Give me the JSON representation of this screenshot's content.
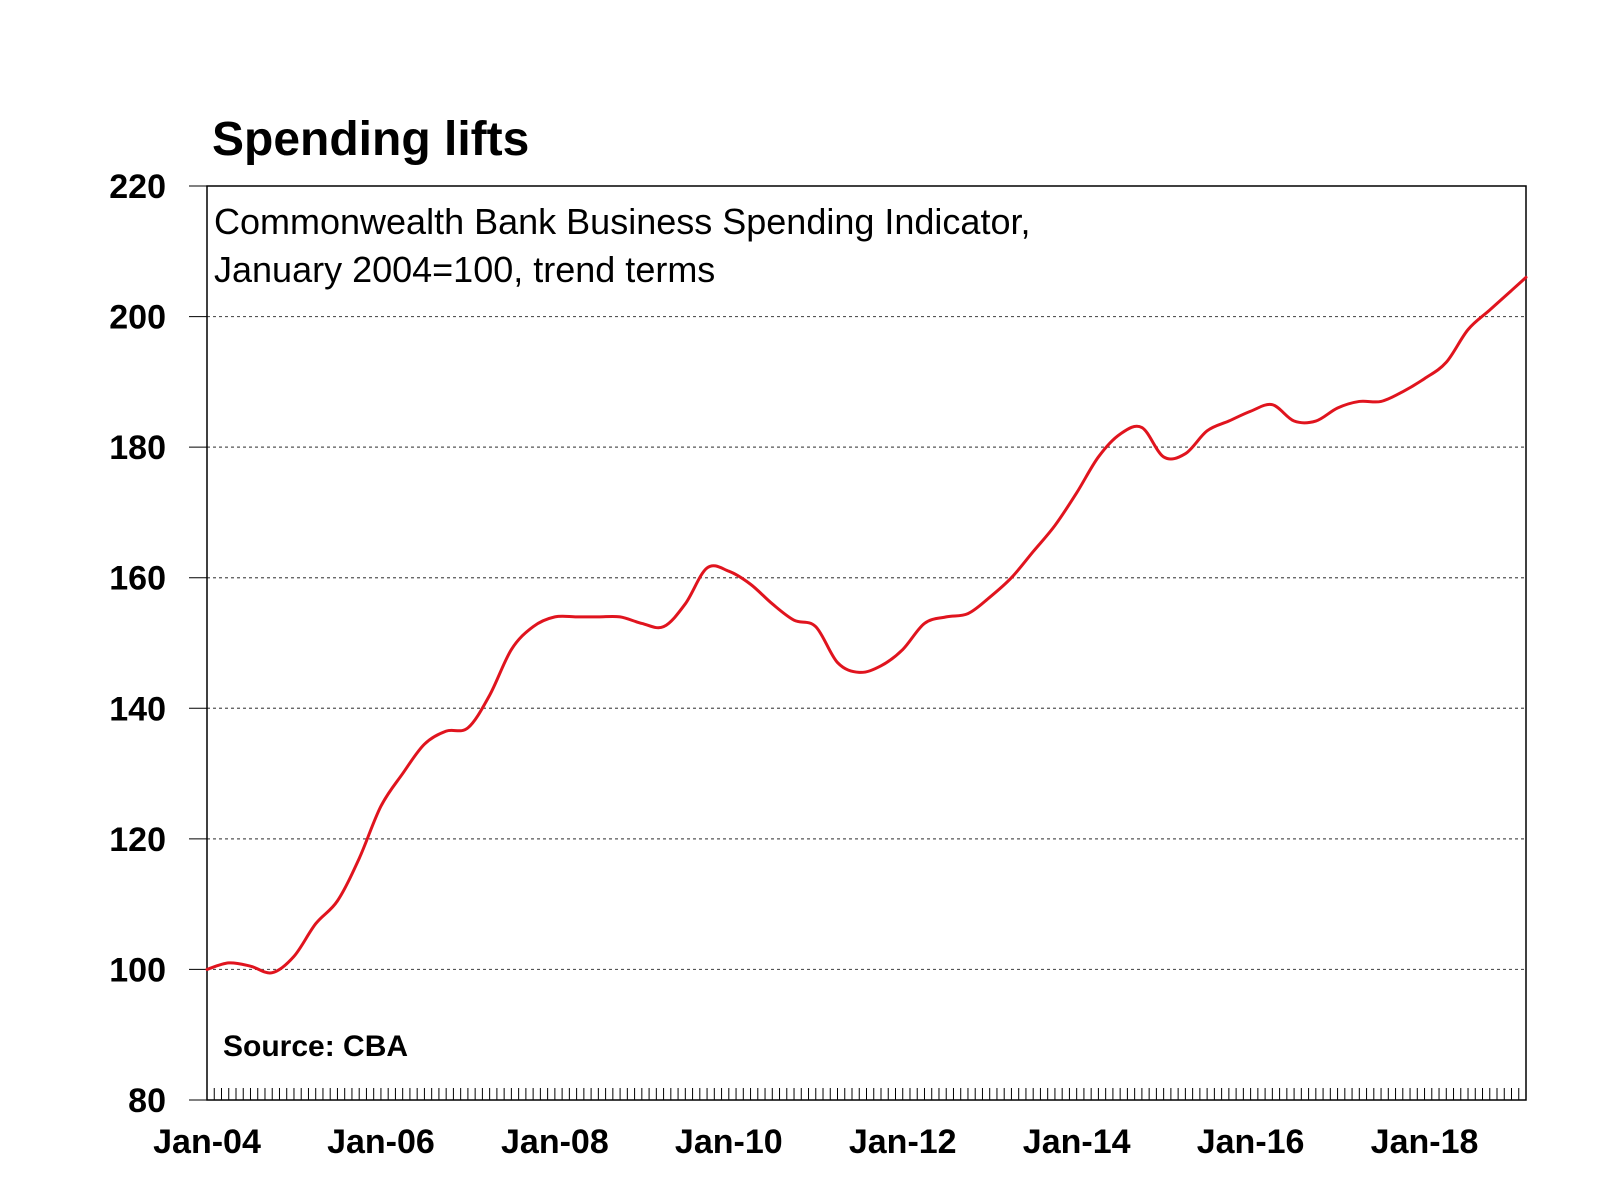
{
  "chart_data": {
    "type": "line",
    "title": "Spending lifts",
    "subtitle_lines": [
      "Commonwealth Bank Business Spending Indicator,",
      "January 2004=100, trend terms"
    ],
    "source": "Source: CBA",
    "ylim": [
      80,
      220
    ],
    "yticks": [
      80,
      100,
      120,
      140,
      160,
      180,
      200,
      220
    ],
    "xlim": [
      "2004-01",
      "2019-03"
    ],
    "xtick_labels": [
      "Jan-04",
      "Jan-06",
      "Jan-08",
      "Jan-10",
      "Jan-12",
      "Jan-14",
      "Jan-16",
      "Jan-18"
    ],
    "grid": true,
    "colors": {
      "series": "#e0141e",
      "grid": "#555555",
      "frame": "#000000"
    },
    "series": [
      {
        "x": [
          "2004-01",
          "2004-04",
          "2004-07",
          "2004-10",
          "2005-01",
          "2005-04",
          "2005-07",
          "2005-10",
          "2006-01",
          "2006-04",
          "2006-07",
          "2006-10",
          "2007-01",
          "2007-04",
          "2007-07",
          "2007-10",
          "2008-01",
          "2008-04",
          "2008-07",
          "2008-10",
          "2009-01",
          "2009-04",
          "2009-07",
          "2009-10",
          "2010-01",
          "2010-04",
          "2010-07",
          "2010-10",
          "2011-01",
          "2011-04",
          "2011-07",
          "2011-10",
          "2012-01",
          "2012-04",
          "2012-07",
          "2012-10",
          "2013-01",
          "2013-04",
          "2013-07",
          "2013-10",
          "2014-01",
          "2014-04",
          "2014-07",
          "2014-10",
          "2015-01",
          "2015-04",
          "2015-07",
          "2015-10",
          "2016-01",
          "2016-04",
          "2016-07",
          "2016-10",
          "2017-01",
          "2017-04",
          "2017-07",
          "2017-10",
          "2018-01",
          "2018-04",
          "2018-07",
          "2018-10",
          "2019-01",
          "2019-03"
        ],
        "values": [
          100,
          101,
          100.5,
          99.5,
          102,
          107,
          110.5,
          117,
          125,
          130,
          134.5,
          136.5,
          137,
          142,
          149,
          152.5,
          154,
          154,
          154,
          154,
          153,
          152.5,
          156,
          161.5,
          161,
          159,
          156,
          153.5,
          152.5,
          147,
          145.5,
          146.5,
          149,
          153,
          154,
          154.5,
          157,
          160,
          164,
          168,
          173,
          178.5,
          182,
          183,
          178.5,
          179,
          182.5,
          184,
          185.5,
          186.5,
          184,
          184,
          186,
          187,
          187,
          188.5,
          190.5,
          193,
          198,
          201,
          204,
          206
        ]
      }
    ]
  }
}
